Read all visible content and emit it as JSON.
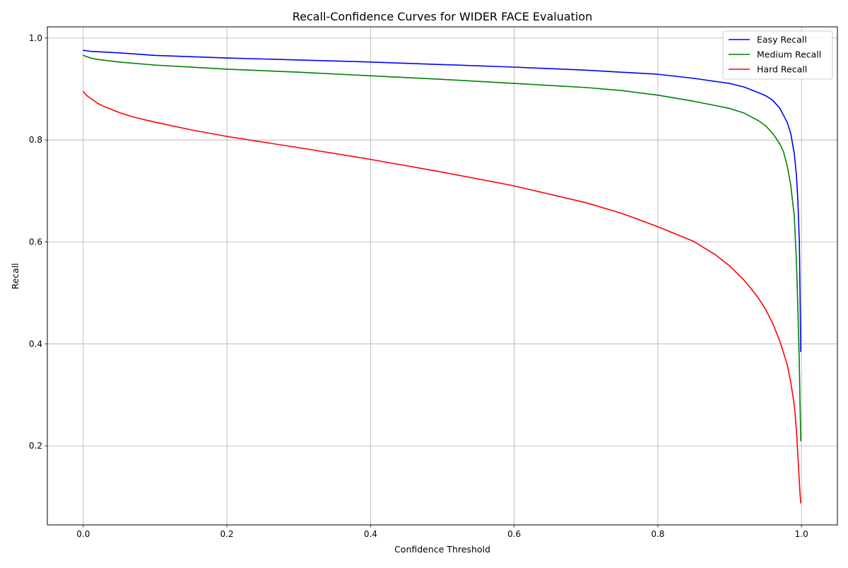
{
  "chart_data": {
    "type": "line",
    "title": "Recall-Confidence Curves for WIDER FACE Evaluation",
    "xlabel": "Confidence Threshold",
    "ylabel": "Recall",
    "xlim": [
      -0.05,
      1.05
    ],
    "ylim": [
      0.045,
      1.022
    ],
    "x_ticks": [
      0.0,
      0.2,
      0.4,
      0.6,
      0.8,
      1.0
    ],
    "x_tick_labels": [
      "0.0",
      "0.2",
      "0.4",
      "0.6",
      "0.8",
      "1.0"
    ],
    "y_ticks": [
      0.2,
      0.4,
      0.6,
      0.8,
      1.0
    ],
    "y_tick_labels": [
      "0.2",
      "0.4",
      "0.6",
      "0.8",
      "1.0"
    ],
    "grid": true,
    "legend_position": "top-right",
    "series": [
      {
        "name": "Easy Recall",
        "color": "#0000ff",
        "x": [
          0.0,
          0.01,
          0.05,
          0.1,
          0.2,
          0.3,
          0.4,
          0.5,
          0.6,
          0.7,
          0.8,
          0.85,
          0.9,
          0.92,
          0.94,
          0.95,
          0.96,
          0.97,
          0.98,
          0.985,
          0.99,
          0.993,
          0.995,
          0.997,
          0.998,
          0.999
        ],
        "y": [
          0.976,
          0.974,
          0.971,
          0.966,
          0.961,
          0.957,
          0.953,
          0.948,
          0.943,
          0.937,
          0.929,
          0.921,
          0.911,
          0.904,
          0.893,
          0.887,
          0.878,
          0.862,
          0.835,
          0.813,
          0.773,
          0.73,
          0.68,
          0.6,
          0.5,
          0.385
        ]
      },
      {
        "name": "Medium Recall",
        "color": "#008000",
        "x": [
          0.0,
          0.01,
          0.02,
          0.05,
          0.1,
          0.2,
          0.3,
          0.4,
          0.5,
          0.6,
          0.7,
          0.75,
          0.8,
          0.85,
          0.9,
          0.92,
          0.94,
          0.95,
          0.96,
          0.97,
          0.975,
          0.98,
          0.985,
          0.99,
          0.993,
          0.995,
          0.997,
          0.998,
          0.999
        ],
        "y": [
          0.966,
          0.961,
          0.958,
          0.953,
          0.947,
          0.939,
          0.933,
          0.926,
          0.919,
          0.911,
          0.903,
          0.897,
          0.888,
          0.876,
          0.862,
          0.853,
          0.838,
          0.828,
          0.813,
          0.792,
          0.777,
          0.75,
          0.712,
          0.65,
          0.56,
          0.47,
          0.36,
          0.28,
          0.21
        ]
      },
      {
        "name": "Hard Recall",
        "color": "#ff0000",
        "x": [
          0.0,
          0.005,
          0.01,
          0.02,
          0.03,
          0.05,
          0.07,
          0.1,
          0.15,
          0.2,
          0.3,
          0.4,
          0.5,
          0.6,
          0.7,
          0.75,
          0.8,
          0.85,
          0.88,
          0.9,
          0.92,
          0.93,
          0.94,
          0.95,
          0.96,
          0.97,
          0.98,
          0.985,
          0.99,
          0.993,
          0.995,
          0.997,
          0.998,
          0.999
        ],
        "y": [
          0.895,
          0.887,
          0.882,
          0.872,
          0.865,
          0.854,
          0.845,
          0.835,
          0.82,
          0.807,
          0.785,
          0.762,
          0.737,
          0.71,
          0.677,
          0.656,
          0.63,
          0.601,
          0.575,
          0.553,
          0.525,
          0.508,
          0.49,
          0.468,
          0.44,
          0.405,
          0.36,
          0.325,
          0.28,
          0.23,
          0.18,
          0.13,
          0.105,
          0.088
        ]
      }
    ]
  }
}
